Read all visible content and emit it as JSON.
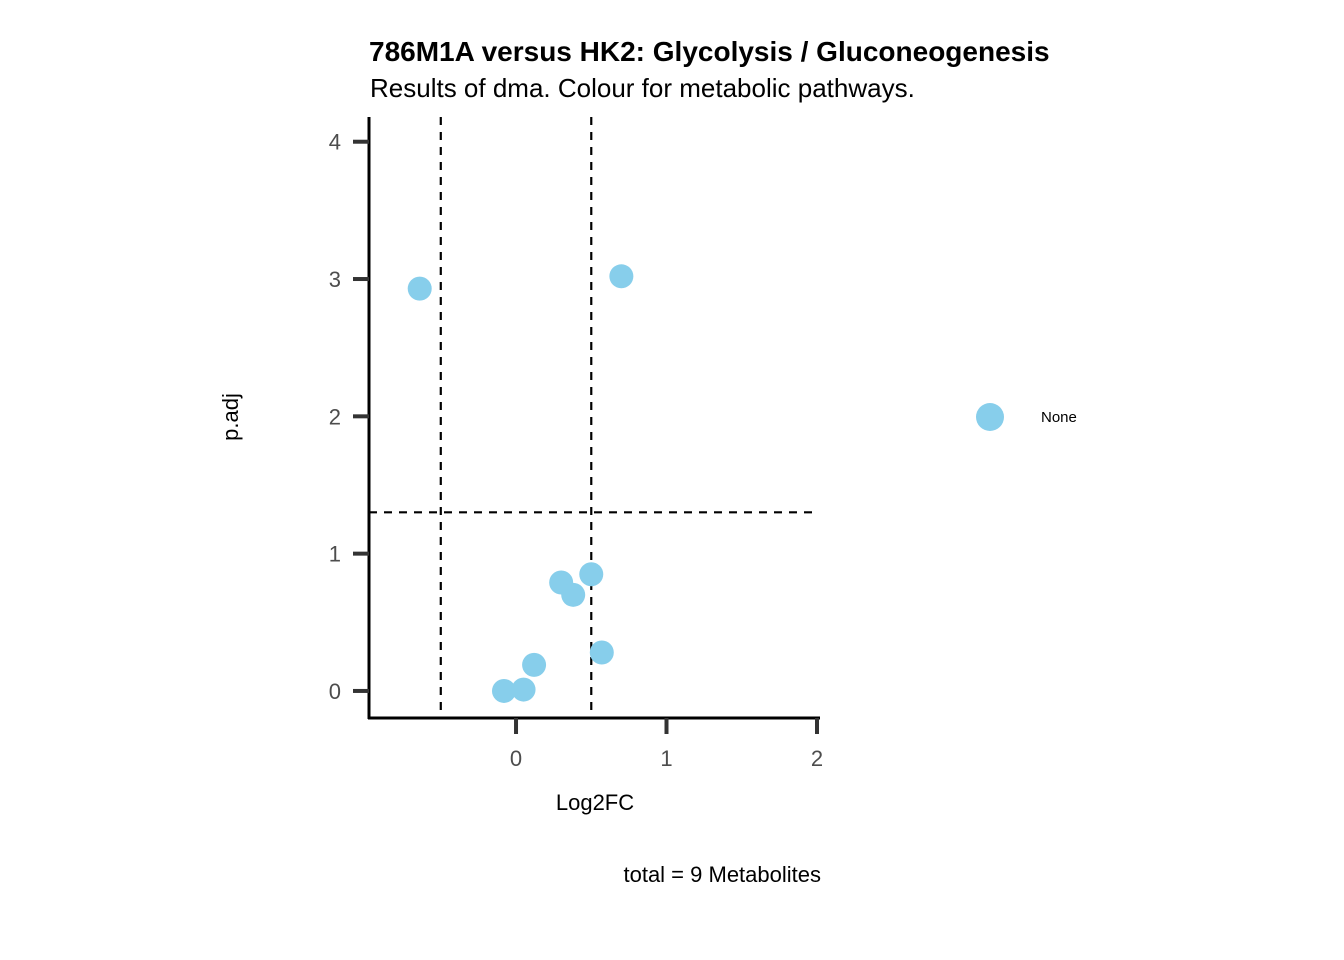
{
  "chart_data": {
    "type": "scatter",
    "title": "786M1A versus HK2: Glycolysis / Gluconeogenesis",
    "subtitle": "Results of dma. Colour for metabolic pathways.",
    "xlabel": "Log2FC",
    "ylabel": "p.adj",
    "caption": "total = 9 Metabolites",
    "xlim": [
      -0.977,
      2.02
    ],
    "ylim": [
      -0.197,
      4.18
    ],
    "xticks": [
      0,
      1,
      2
    ],
    "yticks": [
      0,
      1,
      2,
      3,
      4
    ],
    "grid": false,
    "vlines": [
      -0.5,
      0.5
    ],
    "hlines": [
      1.301
    ],
    "legend": {
      "placement": "right",
      "entries": [
        {
          "label": "None",
          "color": "#87CEEB"
        }
      ]
    },
    "series": [
      {
        "name": "None",
        "color": "#87CEEB",
        "points": [
          {
            "x": -0.64,
            "y": 2.93
          },
          {
            "x": 0.7,
            "y": 3.02
          },
          {
            "x": 0.3,
            "y": 0.79
          },
          {
            "x": 0.5,
            "y": 0.85
          },
          {
            "x": 0.38,
            "y": 0.7
          },
          {
            "x": 0.57,
            "y": 0.28
          },
          {
            "x": 0.12,
            "y": 0.19
          },
          {
            "x": -0.08,
            "y": 0.0
          },
          {
            "x": 0.05,
            "y": 0.01
          }
        ]
      }
    ]
  }
}
